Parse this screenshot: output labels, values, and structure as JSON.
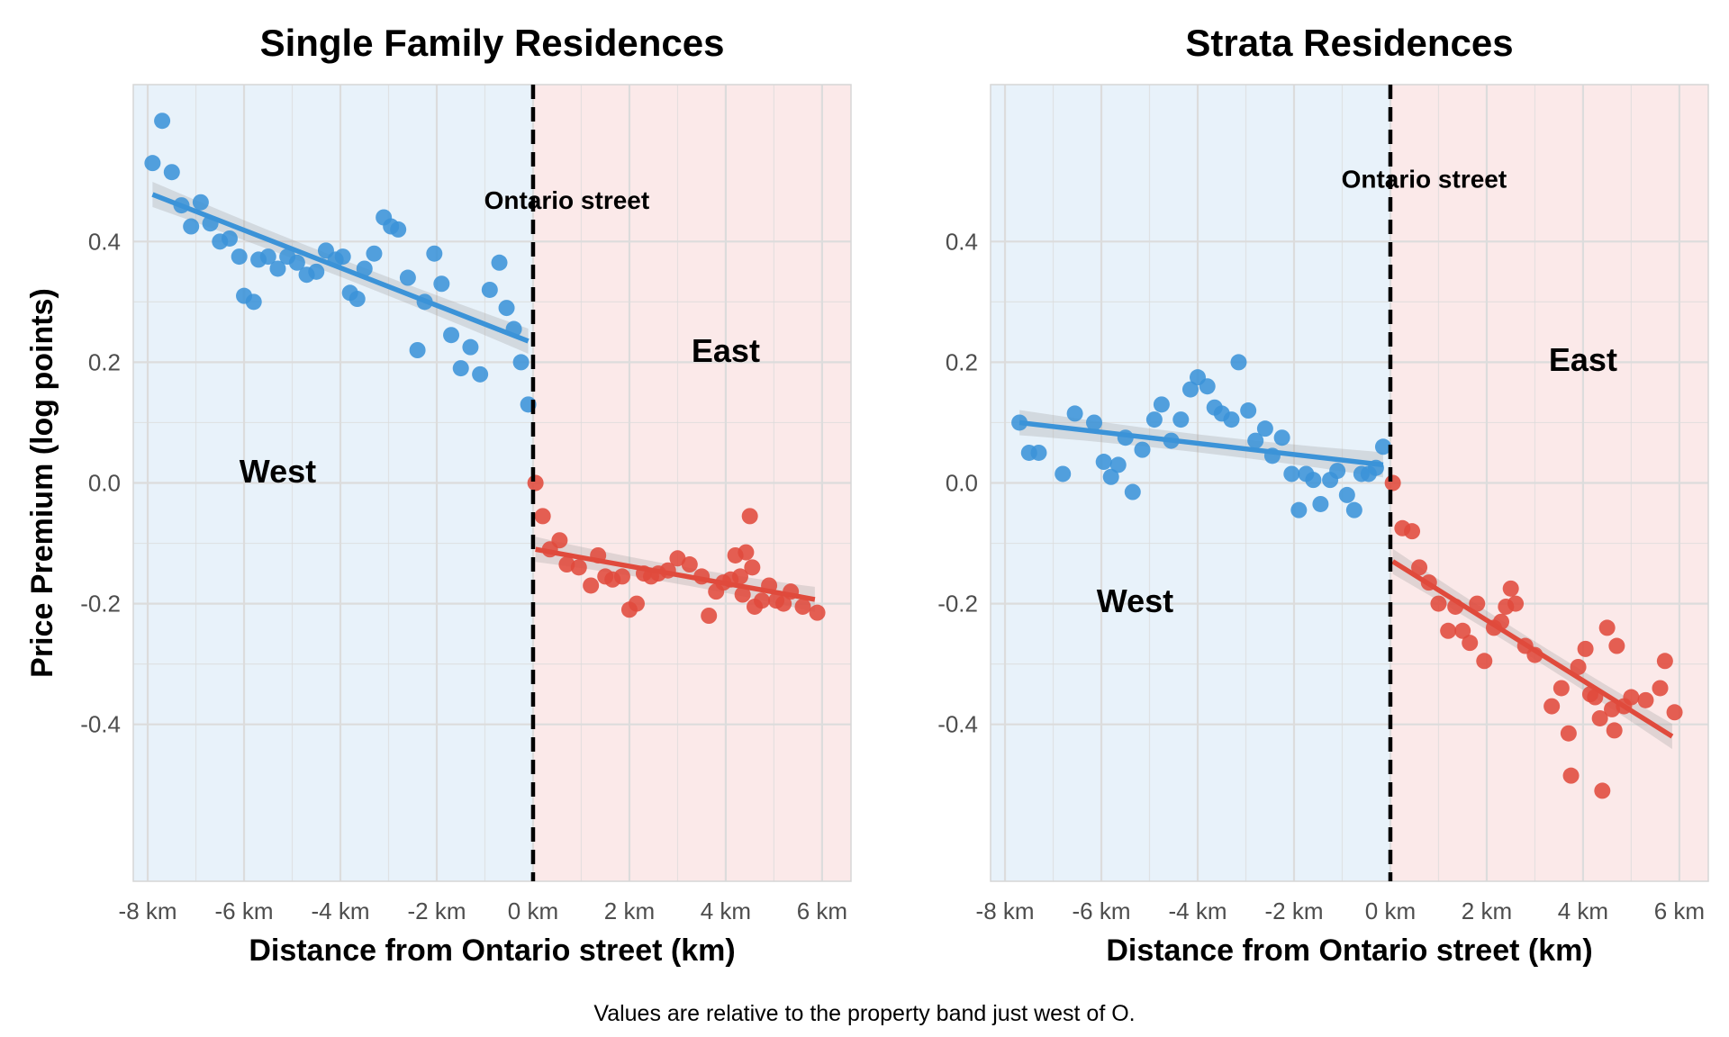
{
  "figure": {
    "caption": "Values are relative to the property band just west of O."
  },
  "colors": {
    "west": "#3b93d8",
    "east": "#e04a3c",
    "west_shade": "#e8f2fa",
    "east_shade": "#fbe9e9",
    "grid": "#dcdcdc",
    "ci_band": "#9a9a9a"
  },
  "chart_data": [
    {
      "type": "scatter",
      "title": "Single Family Residences",
      "xlabel": "Distance from Ontario street (km)",
      "ylabel": "Price Premium (log points)",
      "xlim": [
        -8.3,
        6.6
      ],
      "ylim": [
        -0.66,
        0.66
      ],
      "x_ticks": [
        -8,
        -6,
        -4,
        -2,
        0,
        2,
        4,
        6
      ],
      "x_tick_labels": [
        "-8 km",
        "-6 km",
        "-4 km",
        "-2 km",
        "0 km",
        "2 km",
        "4 km",
        "6 km"
      ],
      "y_ticks": [
        -0.4,
        -0.2,
        0.0,
        0.2,
        0.4
      ],
      "y_tick_labels": [
        "-0.4",
        "-0.2",
        "0.0",
        "0.2",
        "0.4"
      ],
      "grid": true,
      "boundary_x": 0,
      "annotations": [
        {
          "text": "Ontario street",
          "x": 0.7,
          "y": 0.465
        },
        {
          "text": "West",
          "x": -5.3,
          "y": 0.015
        },
        {
          "text": "East",
          "x": 4.0,
          "y": 0.215
        }
      ],
      "series": [
        {
          "name": "West",
          "points": [
            [
              -7.9,
              0.53
            ],
            [
              -7.7,
              0.6
            ],
            [
              -7.5,
              0.515
            ],
            [
              -7.3,
              0.46
            ],
            [
              -7.1,
              0.425
            ],
            [
              -6.9,
              0.465
            ],
            [
              -6.7,
              0.43
            ],
            [
              -6.5,
              0.4
            ],
            [
              -6.3,
              0.405
            ],
            [
              -6.1,
              0.375
            ],
            [
              -6.0,
              0.31
            ],
            [
              -5.8,
              0.3
            ],
            [
              -5.7,
              0.37
            ],
            [
              -5.5,
              0.375
            ],
            [
              -5.3,
              0.355
            ],
            [
              -5.1,
              0.375
            ],
            [
              -4.9,
              0.365
            ],
            [
              -4.7,
              0.345
            ],
            [
              -4.5,
              0.35
            ],
            [
              -4.3,
              0.385
            ],
            [
              -4.1,
              0.37
            ],
            [
              -3.95,
              0.375
            ],
            [
              -3.8,
              0.315
            ],
            [
              -3.65,
              0.305
            ],
            [
              -3.5,
              0.355
            ],
            [
              -3.3,
              0.38
            ],
            [
              -3.1,
              0.44
            ],
            [
              -2.95,
              0.425
            ],
            [
              -2.8,
              0.42
            ],
            [
              -2.6,
              0.34
            ],
            [
              -2.4,
              0.22
            ],
            [
              -2.25,
              0.3
            ],
            [
              -2.05,
              0.38
            ],
            [
              -1.9,
              0.33
            ],
            [
              -1.7,
              0.245
            ],
            [
              -1.5,
              0.19
            ],
            [
              -1.3,
              0.225
            ],
            [
              -1.1,
              0.18
            ],
            [
              -0.9,
              0.32
            ],
            [
              -0.7,
              0.365
            ],
            [
              -0.55,
              0.29
            ],
            [
              -0.4,
              0.255
            ],
            [
              -0.25,
              0.2
            ],
            [
              -0.1,
              0.13
            ]
          ],
          "trend": [
            [
              -7.9,
              0.478
            ],
            [
              -0.1,
              0.235
            ]
          ]
        },
        {
          "name": "East",
          "points": [
            [
              0.05,
              0.0
            ],
            [
              0.2,
              -0.055
            ],
            [
              0.35,
              -0.11
            ],
            [
              0.55,
              -0.095
            ],
            [
              0.7,
              -0.135
            ],
            [
              0.95,
              -0.14
            ],
            [
              1.2,
              -0.17
            ],
            [
              1.35,
              -0.12
            ],
            [
              1.5,
              -0.155
            ],
            [
              1.65,
              -0.16
            ],
            [
              1.85,
              -0.155
            ],
            [
              2.0,
              -0.21
            ],
            [
              2.15,
              -0.2
            ],
            [
              2.3,
              -0.15
            ],
            [
              2.45,
              -0.155
            ],
            [
              2.6,
              -0.15
            ],
            [
              2.8,
              -0.145
            ],
            [
              3.0,
              -0.125
            ],
            [
              3.25,
              -0.135
            ],
            [
              3.5,
              -0.155
            ],
            [
              3.65,
              -0.22
            ],
            [
              3.8,
              -0.18
            ],
            [
              3.95,
              -0.165
            ],
            [
              4.1,
              -0.16
            ],
            [
              4.2,
              -0.12
            ],
            [
              4.3,
              -0.155
            ],
            [
              4.35,
              -0.185
            ],
            [
              4.42,
              -0.115
            ],
            [
              4.5,
              -0.055
            ],
            [
              4.55,
              -0.14
            ],
            [
              4.6,
              -0.205
            ],
            [
              4.75,
              -0.195
            ],
            [
              4.9,
              -0.17
            ],
            [
              5.05,
              -0.195
            ],
            [
              5.2,
              -0.2
            ],
            [
              5.35,
              -0.18
            ],
            [
              5.6,
              -0.205
            ],
            [
              5.9,
              -0.215
            ]
          ],
          "trend": [
            [
              0.05,
              -0.11
            ],
            [
              5.85,
              -0.193
            ]
          ]
        }
      ]
    },
    {
      "type": "scatter",
      "title": "Strata Residences",
      "xlabel": "Distance from Ontario street (km)",
      "ylabel": "",
      "xlim": [
        -8.3,
        6.6
      ],
      "ylim": [
        -0.66,
        0.66
      ],
      "x_ticks": [
        -8,
        -6,
        -4,
        -2,
        0,
        2,
        4,
        6
      ],
      "x_tick_labels": [
        "-8 km",
        "-6 km",
        "-4 km",
        "-2 km",
        "0 km",
        "2 km",
        "4 km",
        "6 km"
      ],
      "y_ticks": [
        -0.4,
        -0.2,
        0.0,
        0.2,
        0.4
      ],
      "y_tick_labels": [
        "-0.4",
        "-0.2",
        "0.0",
        "0.2",
        "0.4"
      ],
      "grid": true,
      "boundary_x": 0,
      "annotations": [
        {
          "text": "Ontario street",
          "x": 0.7,
          "y": 0.5
        },
        {
          "text": "West",
          "x": -5.3,
          "y": -0.2
        },
        {
          "text": "East",
          "x": 4.0,
          "y": 0.2
        }
      ],
      "series": [
        {
          "name": "West",
          "points": [
            [
              -7.7,
              0.1
            ],
            [
              -7.5,
              0.05
            ],
            [
              -7.3,
              0.05
            ],
            [
              -6.8,
              0.015
            ],
            [
              -6.55,
              0.115
            ],
            [
              -6.15,
              0.1
            ],
            [
              -5.95,
              0.035
            ],
            [
              -5.8,
              0.01
            ],
            [
              -5.65,
              0.03
            ],
            [
              -5.5,
              0.075
            ],
            [
              -5.35,
              -0.015
            ],
            [
              -5.15,
              0.055
            ],
            [
              -4.9,
              0.105
            ],
            [
              -4.75,
              0.13
            ],
            [
              -4.55,
              0.07
            ],
            [
              -4.35,
              0.105
            ],
            [
              -4.15,
              0.155
            ],
            [
              -4.0,
              0.175
            ],
            [
              -3.8,
              0.16
            ],
            [
              -3.65,
              0.125
            ],
            [
              -3.5,
              0.115
            ],
            [
              -3.3,
              0.105
            ],
            [
              -3.15,
              0.2
            ],
            [
              -2.95,
              0.12
            ],
            [
              -2.8,
              0.07
            ],
            [
              -2.6,
              0.09
            ],
            [
              -2.45,
              0.045
            ],
            [
              -2.25,
              0.075
            ],
            [
              -2.05,
              0.015
            ],
            [
              -1.9,
              -0.045
            ],
            [
              -1.75,
              0.015
            ],
            [
              -1.6,
              0.005
            ],
            [
              -1.45,
              -0.035
            ],
            [
              -1.25,
              0.005
            ],
            [
              -1.1,
              0.02
            ],
            [
              -0.9,
              -0.02
            ],
            [
              -0.75,
              -0.045
            ],
            [
              -0.6,
              0.015
            ],
            [
              -0.45,
              0.015
            ],
            [
              -0.3,
              0.025
            ],
            [
              -0.15,
              0.06
            ]
          ],
          "trend": [
            [
              -7.7,
              0.1
            ],
            [
              -0.15,
              0.03
            ]
          ]
        },
        {
          "name": "East",
          "points": [
            [
              0.05,
              0.0
            ],
            [
              0.25,
              -0.075
            ],
            [
              0.45,
              -0.08
            ],
            [
              0.6,
              -0.14
            ],
            [
              0.8,
              -0.165
            ],
            [
              1.0,
              -0.2
            ],
            [
              1.2,
              -0.245
            ],
            [
              1.35,
              -0.205
            ],
            [
              1.5,
              -0.245
            ],
            [
              1.65,
              -0.265
            ],
            [
              1.8,
              -0.2
            ],
            [
              1.95,
              -0.295
            ],
            [
              2.15,
              -0.24
            ],
            [
              2.3,
              -0.23
            ],
            [
              2.4,
              -0.205
            ],
            [
              2.5,
              -0.175
            ],
            [
              2.6,
              -0.2
            ],
            [
              2.8,
              -0.27
            ],
            [
              3.0,
              -0.285
            ],
            [
              3.35,
              -0.37
            ],
            [
              3.55,
              -0.34
            ],
            [
              3.7,
              -0.415
            ],
            [
              3.75,
              -0.485
            ],
            [
              3.9,
              -0.305
            ],
            [
              4.05,
              -0.275
            ],
            [
              4.15,
              -0.35
            ],
            [
              4.25,
              -0.355
            ],
            [
              4.35,
              -0.39
            ],
            [
              4.4,
              -0.51
            ],
            [
              4.5,
              -0.24
            ],
            [
              4.6,
              -0.375
            ],
            [
              4.65,
              -0.41
            ],
            [
              4.7,
              -0.27
            ],
            [
              4.85,
              -0.37
            ],
            [
              5.0,
              -0.355
            ],
            [
              5.3,
              -0.36
            ],
            [
              5.6,
              -0.34
            ],
            [
              5.7,
              -0.295
            ],
            [
              5.9,
              -0.38
            ]
          ],
          "trend": [
            [
              0.05,
              -0.13
            ],
            [
              5.85,
              -0.42
            ]
          ]
        }
      ]
    }
  ]
}
